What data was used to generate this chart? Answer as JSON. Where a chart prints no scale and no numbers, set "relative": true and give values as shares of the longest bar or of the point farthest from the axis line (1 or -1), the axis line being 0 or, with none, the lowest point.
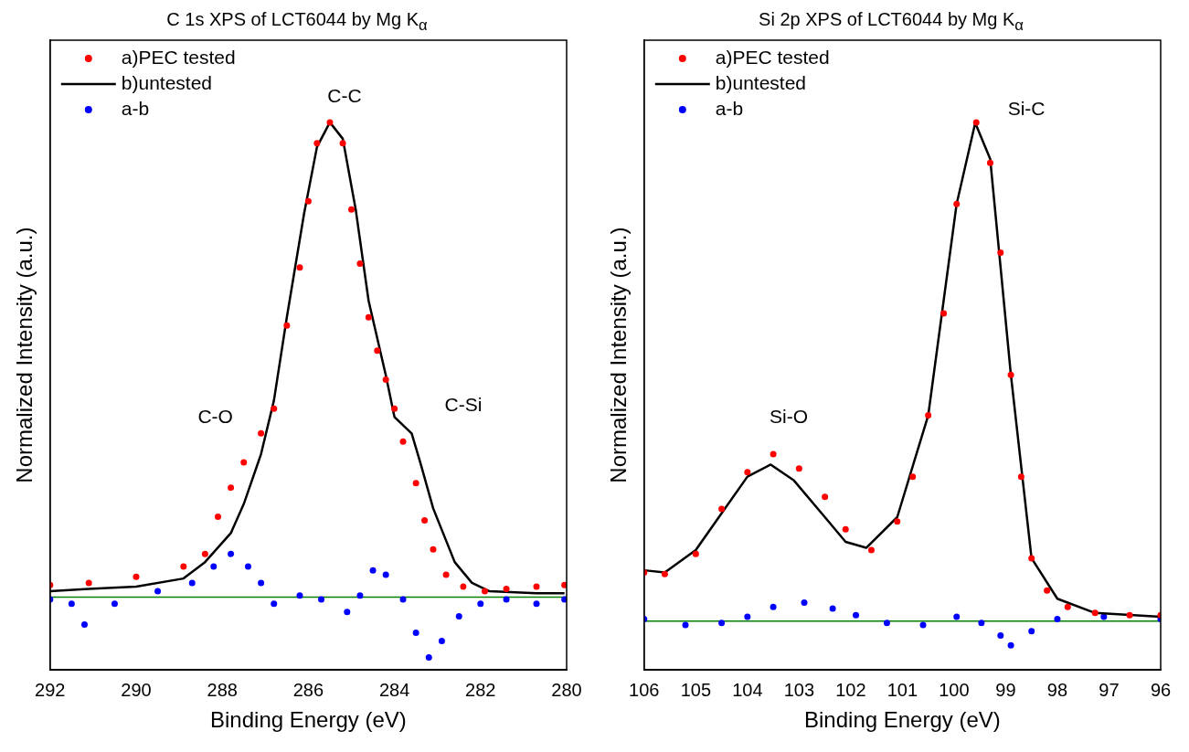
{
  "chart_data": [
    {
      "type": "scatter",
      "title": "C 1s XPS of LCT6044 by Mg K$_{α}$",
      "xlabel": "Binding Energy (eV)",
      "ylabel": "Normalized Intensity (a.u.)",
      "relative": true,
      "xlim": [
        292,
        280
      ],
      "xticks": [
        292,
        290,
        288,
        286,
        284,
        282,
        280
      ],
      "legend": "top left",
      "grid": false,
      "series": [
        {
          "name": "a)PEC tested",
          "type": "scatter",
          "marker": "circle",
          "color": "#ff0000",
          "x": [
            292,
            291.1,
            290,
            288.9,
            288.4,
            288.1,
            287.8,
            287.5,
            287.1,
            286.8,
            286.5,
            286.2,
            286.0,
            285.8,
            285.5,
            285.2,
            285.0,
            284.8,
            284.6,
            284.4,
            284.2,
            284.0,
            283.8,
            283.5,
            283.3,
            283.1,
            282.8,
            282.4,
            281.9,
            281.4,
            280.7,
            280.05
          ],
          "values": [
            0.155,
            0.159,
            0.17,
            0.189,
            0.212,
            0.28,
            0.333,
            0.379,
            0.432,
            0.477,
            0.629,
            0.735,
            0.856,
            0.962,
            1.0,
            0.962,
            0.841,
            0.742,
            0.644,
            0.583,
            0.53,
            0.477,
            0.417,
            0.341,
            0.273,
            0.22,
            0.174,
            0.152,
            0.144,
            0.148,
            0.152,
            0.155
          ]
        },
        {
          "name": "b)untested",
          "type": "line",
          "marker": "none",
          "color": "#000000",
          "x": [
            292,
            291.1,
            290,
            288.9,
            288.4,
            287.8,
            287.5,
            287.1,
            286.8,
            286.5,
            286.1,
            285.8,
            285.5,
            285.2,
            284.9,
            284.6,
            284.2,
            284.0,
            283.6,
            283.4,
            283.1,
            282.6,
            282.2,
            281.8,
            280.7,
            280.05
          ],
          "values": [
            0.144,
            0.148,
            0.152,
            0.167,
            0.197,
            0.25,
            0.303,
            0.394,
            0.492,
            0.644,
            0.833,
            0.955,
            1.0,
            0.97,
            0.841,
            0.674,
            0.538,
            0.462,
            0.432,
            0.379,
            0.295,
            0.197,
            0.159,
            0.144,
            0.14,
            0.14
          ]
        },
        {
          "name": "a-b",
          "type": "scatter",
          "marker": "circle",
          "color": "#0000ff",
          "x": [
            292,
            291.5,
            291.2,
            290.5,
            289.5,
            288.7,
            288.2,
            287.8,
            287.4,
            287.1,
            286.8,
            286.2,
            285.7,
            285.1,
            284.8,
            284.5,
            284.2,
            283.8,
            283.5,
            283.2,
            282.9,
            282.5,
            282.0,
            281.4,
            280.7,
            280.05
          ],
          "values": [
            0.129,
            0.121,
            0.083,
            0.121,
            0.144,
            0.159,
            0.189,
            0.212,
            0.189,
            0.159,
            0.121,
            0.136,
            0.129,
            0.106,
            0.136,
            0.182,
            0.174,
            0.129,
            0.068,
            0.023,
            0.053,
            0.098,
            0.121,
            0.129,
            0.121,
            0.129
          ]
        }
      ],
      "ref_lines": [
        {
          "axis": "y",
          "value": 0.133,
          "color": "#008000"
        }
      ],
      "annotations": [
        "C-C",
        "C-O",
        "C-Si"
      ]
    },
    {
      "type": "scatter",
      "title": "Si 2p XPS of LCT6044 by Mg K$_{α}$",
      "xlabel": "Binding Energy (eV)",
      "ylabel": "Normalized Intensity (a.u.)",
      "relative": true,
      "xlim": [
        106,
        96
      ],
      "xticks": [
        106,
        105,
        104,
        103,
        102,
        101,
        100,
        99,
        98,
        97,
        96
      ],
      "legend": "top left",
      "grid": false,
      "series": [
        {
          "name": "a)PEC tested",
          "type": "scatter",
          "marker": "circle",
          "color": "#ff0000",
          "x": [
            106,
            105.6,
            105.0,
            104.5,
            104.0,
            103.5,
            103.0,
            102.5,
            102.1,
            101.6,
            101.1,
            100.8,
            100.5,
            100.2,
            99.95,
            99.57,
            99.3,
            99.1,
            98.9,
            98.7,
            98.5,
            98.2,
            97.8,
            97.27,
            96.6,
            96.0
          ],
          "values": [
            0.178,
            0.175,
            0.212,
            0.294,
            0.361,
            0.394,
            0.368,
            0.316,
            0.257,
            0.219,
            0.271,
            0.353,
            0.465,
            0.651,
            0.851,
            1.0,
            0.926,
            0.762,
            0.539,
            0.353,
            0.204,
            0.145,
            0.115,
            0.104,
            0.1,
            0.1
          ]
        },
        {
          "name": "b)untested",
          "type": "line",
          "marker": "none",
          "color": "#000000",
          "x": [
            106,
            105.6,
            105.0,
            104.5,
            104.0,
            103.55,
            103.1,
            102.5,
            102.1,
            101.7,
            101.1,
            100.5,
            99.95,
            99.59,
            99.3,
            98.9,
            98.5,
            98.0,
            97.27,
            96.0
          ],
          "values": [
            0.182,
            0.178,
            0.219,
            0.286,
            0.353,
            0.375,
            0.346,
            0.279,
            0.234,
            0.223,
            0.279,
            0.465,
            0.851,
            0.999,
            0.933,
            0.539,
            0.204,
            0.13,
            0.104,
            0.097
          ]
        },
        {
          "name": "a-b",
          "type": "scatter",
          "marker": "circle",
          "color": "#0000ff",
          "x": [
            106,
            105.2,
            104.5,
            104.0,
            103.5,
            102.9,
            102.35,
            101.9,
            101.3,
            100.6,
            99.95,
            99.47,
            99.1,
            98.9,
            98.5,
            98.0,
            97.1,
            96.0
          ],
          "values": [
            0.093,
            0.082,
            0.086,
            0.097,
            0.115,
            0.123,
            0.112,
            0.1,
            0.086,
            0.082,
            0.097,
            0.086,
            0.063,
            0.045,
            0.071,
            0.093,
            0.097,
            0.093
          ]
        }
      ],
      "ref_lines": [
        {
          "axis": "y",
          "value": 0.089,
          "color": "#008000"
        }
      ],
      "annotations": [
        "Si-O",
        "Si-C"
      ]
    }
  ]
}
